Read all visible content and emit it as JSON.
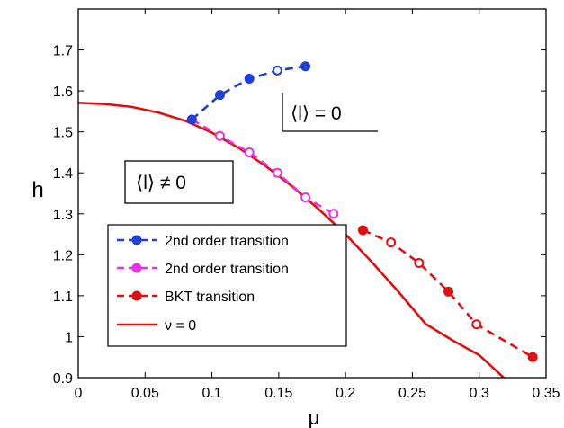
{
  "chart_data": {
    "type": "line",
    "title": "",
    "xlabel": "μ",
    "ylabel": "h",
    "xlim": [
      0,
      0.35
    ],
    "ylim": [
      0.9,
      1.8
    ],
    "xticks": [
      "0",
      "0.05",
      "0.1",
      "0.15",
      "0.2",
      "0.25",
      "0.3",
      "0.35"
    ],
    "xtick_values": [
      0,
      0.05,
      0.1,
      0.15,
      0.2,
      0.25,
      0.3,
      0.35
    ],
    "yticks": [
      "0.9",
      "1",
      "1.1",
      "1.2",
      "1.3",
      "1.4",
      "1.5",
      "1.6",
      "1.7"
    ],
    "ytick_values": [
      0.9,
      1.0,
      1.1,
      1.2,
      1.3,
      1.4,
      1.5,
      1.6,
      1.7
    ],
    "grid": false,
    "legend_position": "bottom-left",
    "series": [
      {
        "name": "2nd order transition",
        "color": "#1f3fd6",
        "style": "dashed-marker",
        "x": [
          0.085,
          0.106,
          0.128,
          0.149,
          0.17
        ],
        "y": [
          1.53,
          1.59,
          1.63,
          1.65,
          1.66
        ],
        "hollow": [
          false,
          false,
          false,
          true,
          false
        ]
      },
      {
        "name": "2nd order transition",
        "color": "#e633e6",
        "style": "dashed-marker",
        "x": [
          0.085,
          0.106,
          0.128,
          0.149,
          0.17,
          0.191
        ],
        "y": [
          1.53,
          1.49,
          1.45,
          1.4,
          1.34,
          1.3
        ],
        "hollow": [
          true,
          true,
          true,
          true,
          true,
          true
        ]
      },
      {
        "name": "BKT transition",
        "color": "#e01010",
        "style": "dashed-marker",
        "x": [
          0.213,
          0.234,
          0.255,
          0.277,
          0.298,
          0.34
        ],
        "y": [
          1.26,
          1.23,
          1.18,
          1.11,
          1.03,
          0.95
        ],
        "hollow": [
          false,
          true,
          true,
          false,
          true,
          false
        ]
      },
      {
        "name": "ν = 0",
        "color": "#e01010",
        "style": "solid",
        "x": [
          0,
          0.02,
          0.04,
          0.06,
          0.08,
          0.1,
          0.12,
          0.14,
          0.16,
          0.18,
          0.2,
          0.22,
          0.24,
          0.26,
          0.28,
          0.3,
          0.32
        ],
        "y": [
          1.571,
          1.568,
          1.561,
          1.547,
          1.527,
          1.498,
          1.461,
          1.417,
          1.367,
          1.311,
          1.25,
          1.181,
          1.108,
          1.031,
          0.991,
          0.955,
          0.895
        ]
      }
    ],
    "annotations": [
      "⟨l⟩ = 0",
      "⟨l⟩ ≠ 0"
    ]
  }
}
